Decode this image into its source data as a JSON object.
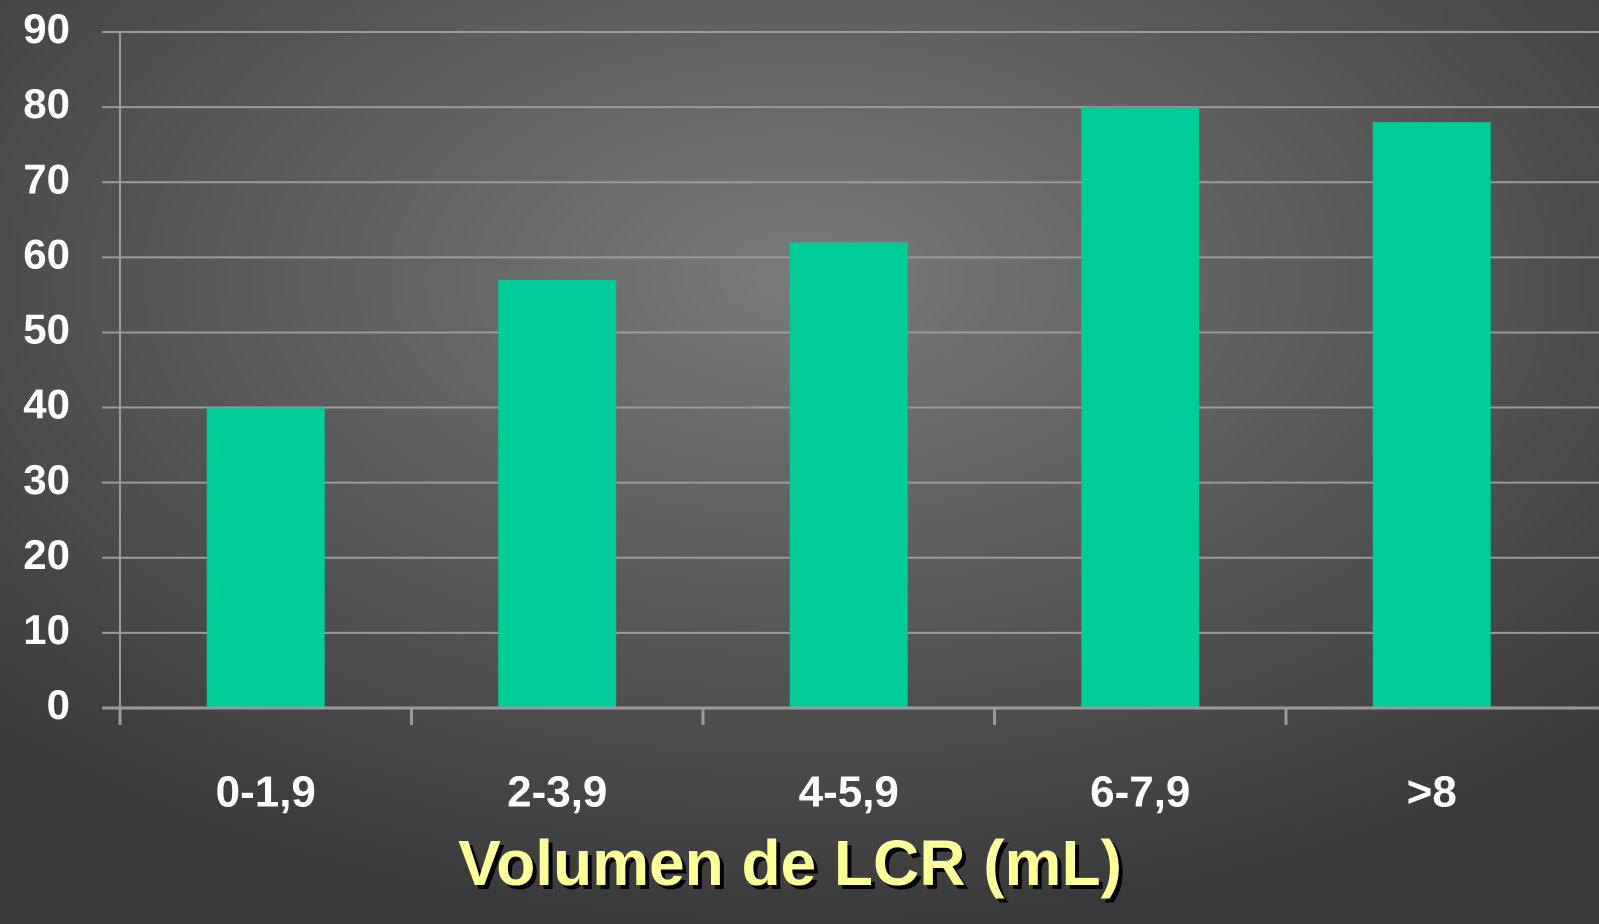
{
  "chart_data": {
    "type": "bar",
    "categories": [
      "0-1,9",
      "2-3,9",
      "4-5,9",
      "6-7,9",
      ">8"
    ],
    "values": [
      40,
      57,
      62,
      80,
      78
    ],
    "color": "#00cc99",
    "x_label": "Volumen de LCR (mL)",
    "ylim": [
      0,
      90
    ],
    "yticks": [
      0,
      10,
      20,
      30,
      40,
      50,
      60,
      70,
      80,
      90
    ],
    "grid": true
  }
}
